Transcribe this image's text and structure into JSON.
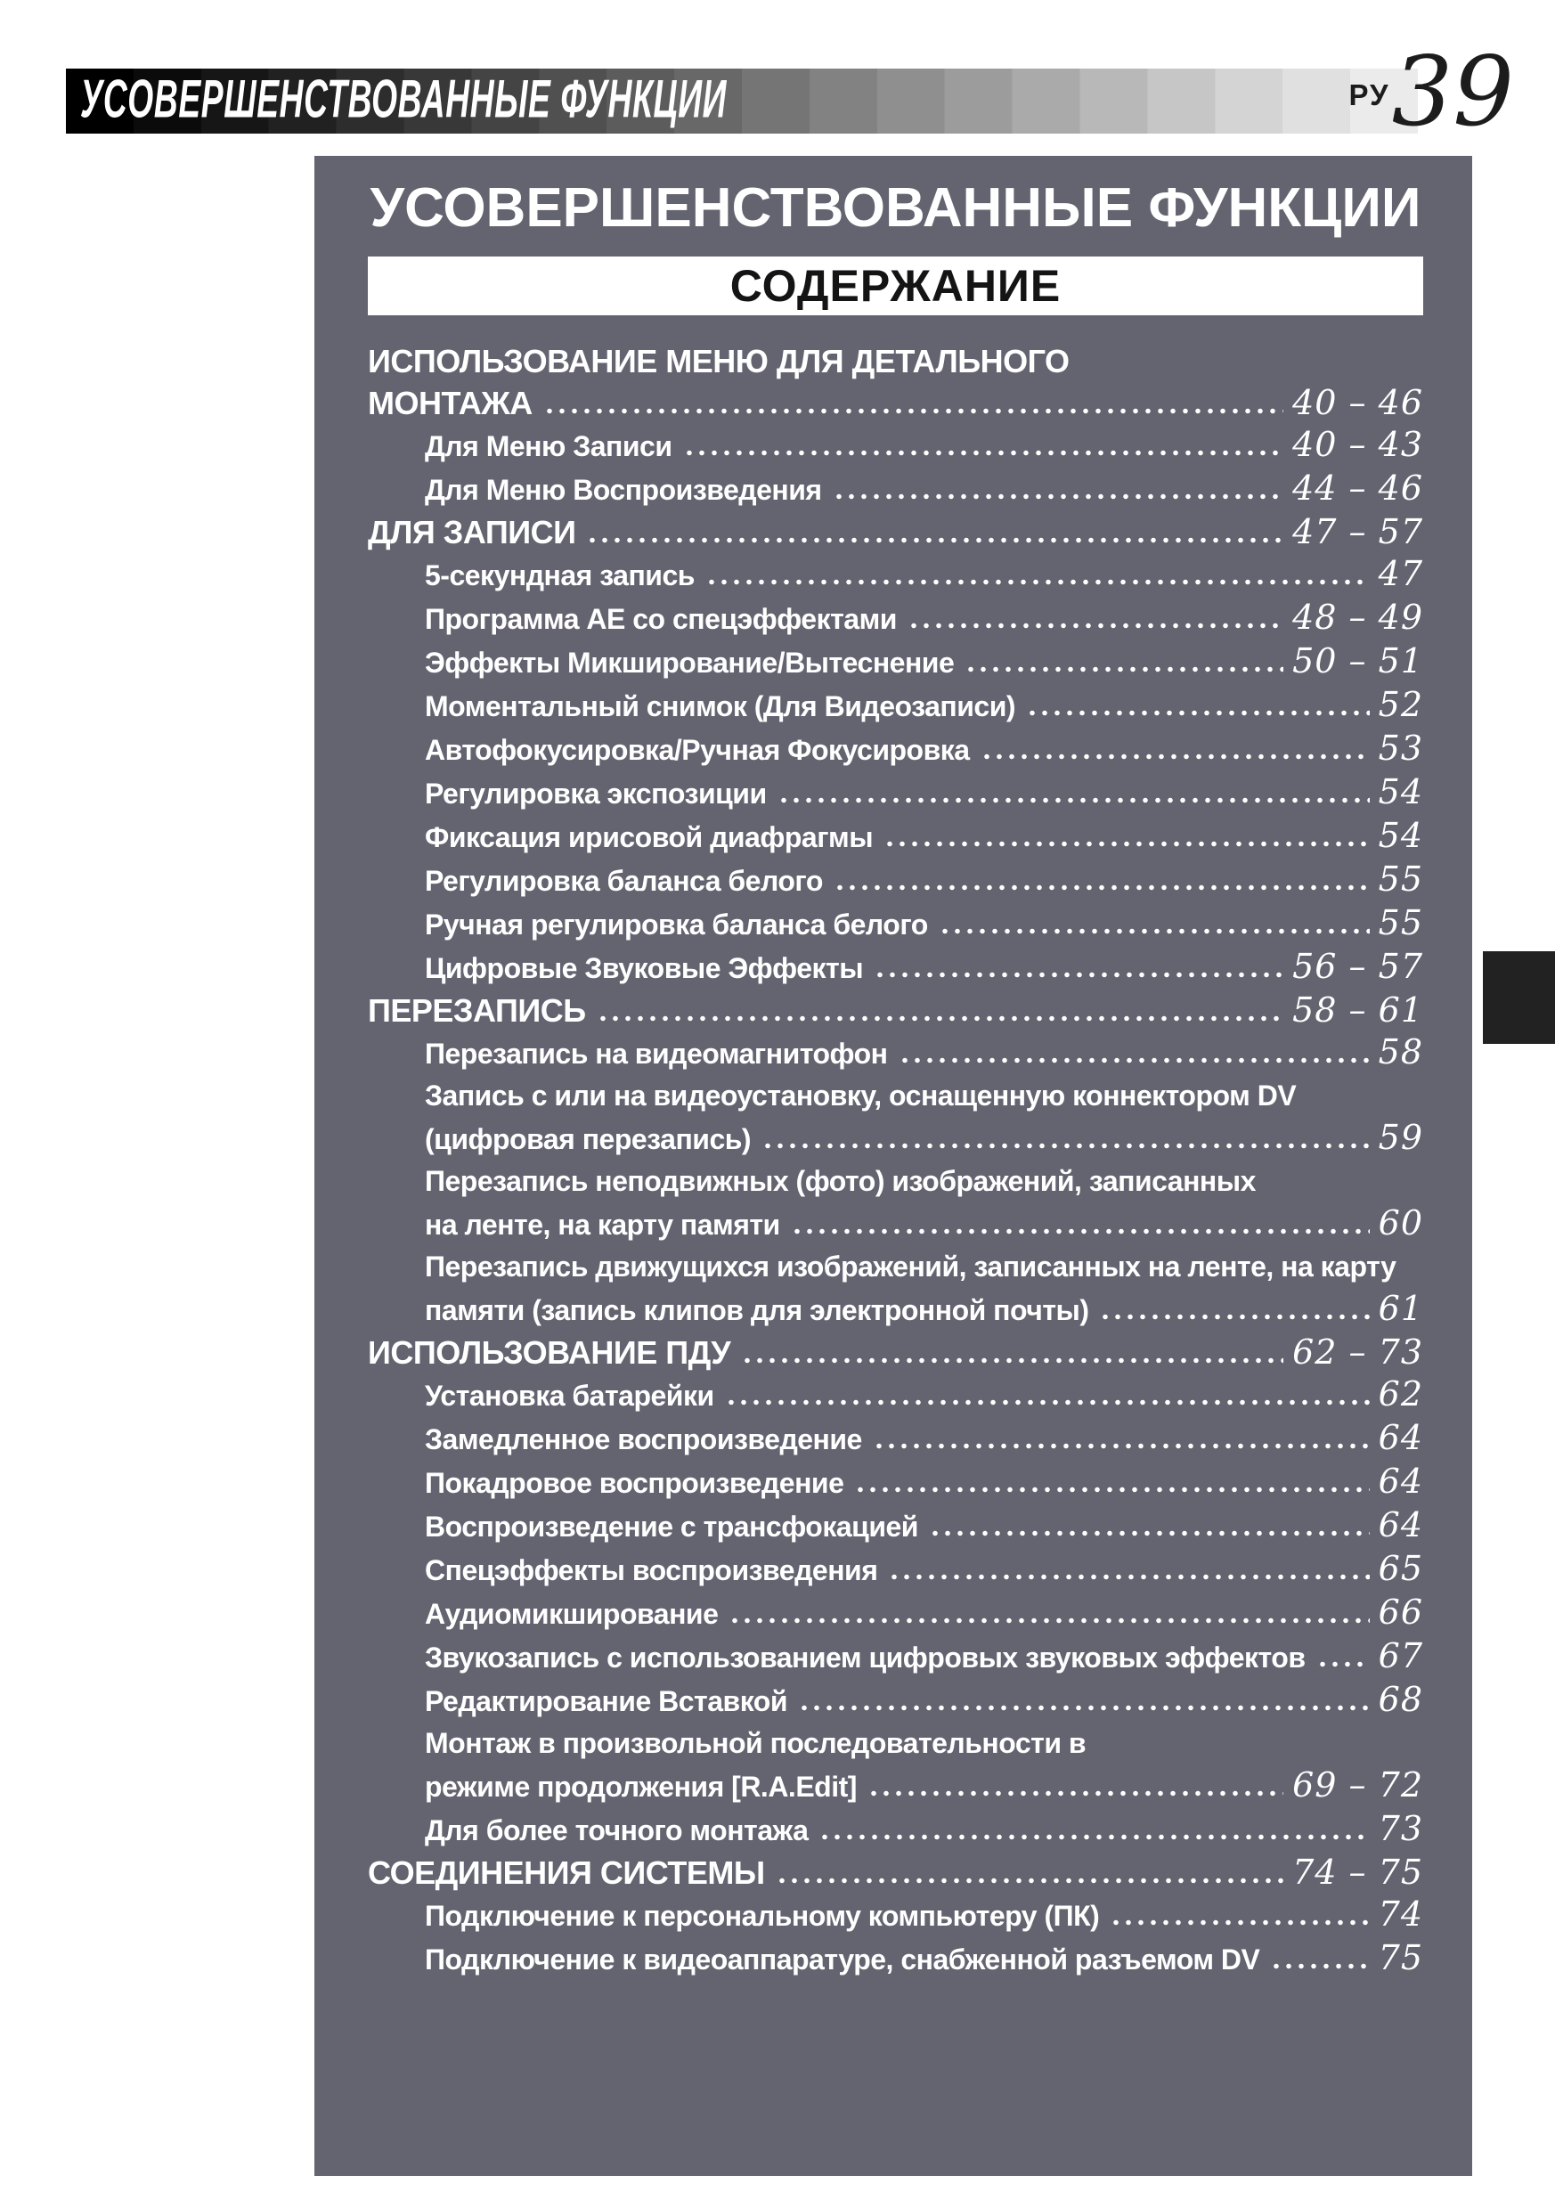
{
  "colors": {
    "box-bg": "#646370",
    "tab-black": "#222222",
    "text-white": "#ffffff",
    "header-text": "#ffffff",
    "page-number-black": "#1c1c1c",
    "contents-bar-bg": "#ffffff",
    "contents-text": "#141414"
  },
  "header": {
    "title": "УСОВЕРШЕНСТВОВАННЫЕ ФУНКЦИИ",
    "lang_label": "РУ",
    "page_number": "39"
  },
  "content": {
    "title": "УСОВЕРШЕНСТВОВАННЫЕ ФУНКЦИИ",
    "contents_label": "СОДЕРЖАНИЕ",
    "sections": [
      {
        "heading_lines": [
          "ИСПОЛЬЗОВАНИЕ МЕНЮ ДЛЯ ДЕТАЛЬНОГО",
          "МОНТАЖА"
        ],
        "pages": "40 – 46",
        "items": [
          {
            "lines": [
              "Для Меню Записи"
            ],
            "pages": "40 – 43"
          },
          {
            "lines": [
              "Для Меню Воспроизведения"
            ],
            "pages": "44 – 46"
          }
        ]
      },
      {
        "heading_lines": [
          "ДЛЯ ЗАПИСИ"
        ],
        "pages": "47 – 57",
        "items": [
          {
            "lines": [
              "5-секундная запись"
            ],
            "pages": "47"
          },
          {
            "lines": [
              "Программа AE со спецэффектами"
            ],
            "pages": "48 – 49"
          },
          {
            "lines": [
              "Эффекты Микширование/Вытеснение"
            ],
            "pages": "50 – 51"
          },
          {
            "lines": [
              "Моментальный снимок (Для Видеозаписи)"
            ],
            "pages": "52"
          },
          {
            "lines": [
              "Автофокусировка/Ручная Фокусировка"
            ],
            "pages": "53"
          },
          {
            "lines": [
              "Регулировка экспозиции"
            ],
            "pages": "54"
          },
          {
            "lines": [
              "Фиксация ирисовой диафрагмы"
            ],
            "pages": "54"
          },
          {
            "lines": [
              "Регулировка баланса белого"
            ],
            "pages": "55"
          },
          {
            "lines": [
              "Ручная регулировка баланса белого"
            ],
            "pages": "55"
          },
          {
            "lines": [
              "Цифровые Звуковые Эффекты"
            ],
            "pages": "56 – 57"
          }
        ]
      },
      {
        "heading_lines": [
          "ПЕРЕЗАПИСЬ"
        ],
        "pages": "58 – 61",
        "items": [
          {
            "lines": [
              "Перезапись на видеомагнитофон"
            ],
            "pages": "58"
          },
          {
            "lines": [
              "Запись с или на видеоустановку, оснащенную коннектором DV",
              "(цифровая перезапись)"
            ],
            "pages": "59"
          },
          {
            "lines": [
              "Перезапись неподвижных (фото) изображений, записанных",
              "на ленте, на карту памяти"
            ],
            "pages": "60"
          },
          {
            "lines": [
              "Перезапись движущихся изображений, записанных на ленте, на карту",
              "памяти (запись клипов для электронной почты)"
            ],
            "pages": "61"
          }
        ]
      },
      {
        "heading_lines": [
          "ИСПОЛЬЗОВАНИЕ ПДУ"
        ],
        "pages": "62 – 73",
        "items": [
          {
            "lines": [
              "Установка батарейки"
            ],
            "pages": "62"
          },
          {
            "lines": [
              "Замедленное воспроизведение"
            ],
            "pages": "64"
          },
          {
            "lines": [
              "Покадровое воспроизведение"
            ],
            "pages": "64"
          },
          {
            "lines": [
              "Воспроизведение с трансфокацией"
            ],
            "pages": "64"
          },
          {
            "lines": [
              "Спецэффекты воспроизведения"
            ],
            "pages": "65"
          },
          {
            "lines": [
              "Аудиомикширование"
            ],
            "pages": "66"
          },
          {
            "lines": [
              "Звукозапись с использованием цифровых звуковых эффектов"
            ],
            "pages": "67"
          },
          {
            "lines": [
              "Редактирование Вставкой"
            ],
            "pages": "68"
          },
          {
            "lines": [
              "Монтаж в произвольной последовательности в",
              "режиме продолжения [R.A.Edit]"
            ],
            "pages": "69 – 72"
          },
          {
            "lines": [
              "Для более точного монтажа"
            ],
            "pages": "73"
          }
        ]
      },
      {
        "heading_lines": [
          "СОЕДИНЕНИЯ СИСТЕМЫ"
        ],
        "pages": "74 – 75",
        "items": [
          {
            "lines": [
              "Подключение к персональному компьютеру (ПК)"
            ],
            "pages": "74"
          },
          {
            "lines": [
              "Подключение к видеоаппаратуре, снабженной разъемом DV"
            ],
            "pages": "75"
          }
        ]
      }
    ]
  }
}
